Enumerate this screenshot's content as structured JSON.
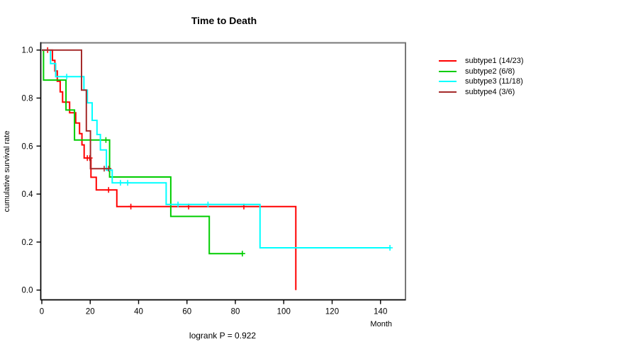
{
  "chart_data": {
    "type": "line",
    "variant": "kaplan-meier-survival-steps",
    "title": "Time to Death",
    "xlabel": "Month",
    "ylabel": "cumulative survival rate",
    "annotation": "logrank P = 0.922",
    "xlim": [
      0,
      150
    ],
    "ylim": [
      0.0,
      1.0
    ],
    "x_ticks": [
      0,
      20,
      40,
      60,
      80,
      100,
      120,
      140
    ],
    "y_ticks": [
      0.0,
      0.2,
      0.4,
      0.6,
      0.8,
      1.0
    ],
    "grid": false,
    "legend_position": "right-outside",
    "box_color": "#777777",
    "axis_color": "#000000",
    "series": [
      {
        "name": "subtype1",
        "legend_label": "subtype1 (14/23)",
        "events_ratio": "14/23",
        "color": "#FF0000",
        "steps": [
          [
            0,
            1.0
          ],
          [
            4.4,
            0.957
          ],
          [
            5.4,
            0.913
          ],
          [
            6.4,
            0.87
          ],
          [
            7.6,
            0.826
          ],
          [
            8.6,
            0.783
          ],
          [
            11.5,
            0.739
          ],
          [
            14.0,
            0.696
          ],
          [
            15.6,
            0.652
          ],
          [
            16.6,
            0.605
          ],
          [
            17.5,
            0.55
          ],
          [
            20.3,
            0.47
          ],
          [
            22.5,
            0.417
          ],
          [
            31.0,
            0.348
          ],
          [
            105.0,
            0.0
          ]
        ],
        "end_time": 105.0,
        "censors": [
          [
            2.4,
            1.0
          ],
          [
            18.8,
            0.55
          ],
          [
            19.8,
            0.55
          ],
          [
            27.6,
            0.417
          ],
          [
            36.8,
            0.348
          ],
          [
            60.7,
            0.348
          ],
          [
            83.5,
            0.348
          ]
        ]
      },
      {
        "name": "subtype2",
        "legend_label": "subtype2 (6/8)",
        "events_ratio": "6/8",
        "color": "#00CD00",
        "steps": [
          [
            0,
            1.0
          ],
          [
            0.7,
            0.875
          ],
          [
            10.0,
            0.75
          ],
          [
            13.5,
            0.625
          ],
          [
            28.0,
            0.471
          ],
          [
            53.3,
            0.307
          ],
          [
            69.2,
            0.152
          ]
        ],
        "end_time": 83.2,
        "censors": [
          [
            26.5,
            0.625
          ],
          [
            82.9,
            0.152
          ]
        ]
      },
      {
        "name": "subtype3",
        "legend_label": "subtype3 (11/18)",
        "events_ratio": "11/18",
        "color": "#00FFFF",
        "steps": [
          [
            0,
            1.0
          ],
          [
            3.6,
            0.944
          ],
          [
            5.7,
            0.889
          ],
          [
            17.4,
            0.833
          ],
          [
            18.8,
            0.78
          ],
          [
            20.8,
            0.707
          ],
          [
            22.8,
            0.648
          ],
          [
            24.2,
            0.584
          ],
          [
            26.7,
            0.5
          ],
          [
            29.1,
            0.447
          ],
          [
            51.4,
            0.357
          ],
          [
            90.2,
            0.176
          ]
        ],
        "end_time": 144.3,
        "censors": [
          [
            10.3,
            0.889
          ],
          [
            32.5,
            0.447
          ],
          [
            35.5,
            0.447
          ],
          [
            56.3,
            0.357
          ],
          [
            68.7,
            0.357
          ],
          [
            143.9,
            0.176
          ]
        ]
      },
      {
        "name": "subtype4",
        "legend_label": "subtype4 (3/6)",
        "events_ratio": "3/6",
        "color": "#A52A2A",
        "steps": [
          [
            0,
            1.0
          ],
          [
            16.4,
            0.833
          ],
          [
            18.4,
            0.663
          ],
          [
            20.1,
            0.506
          ]
        ],
        "end_time": 27.9,
        "censors": [
          [
            25.8,
            0.506
          ],
          [
            27.6,
            0.506
          ]
        ]
      }
    ]
  }
}
